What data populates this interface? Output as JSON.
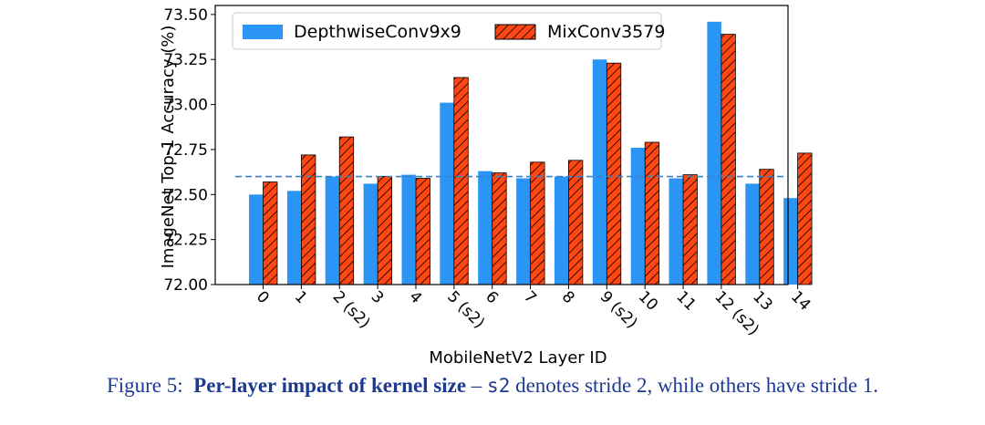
{
  "chart_data": {
    "type": "bar",
    "title": "",
    "xlabel": "MobileNetV2 Layer ID",
    "ylabel": "ImageNet Top-1 Accuracy (%)",
    "ylim": [
      72.0,
      73.55
    ],
    "yticks": [
      "72.00",
      "72.25",
      "72.50",
      "72.75",
      "73.00",
      "73.25",
      "73.50"
    ],
    "categories": [
      "0",
      "1",
      "2 (s2)",
      "3",
      "4",
      "5 (s2)",
      "6",
      "7",
      "8",
      "9 (s2)",
      "10",
      "11",
      "12 (s2)",
      "13",
      "14"
    ],
    "series": [
      {
        "name": "DepthwiseConv9x9",
        "color": "#2b95f5",
        "pattern": "solid",
        "values": [
          72.5,
          72.52,
          72.6,
          72.56,
          72.61,
          73.01,
          72.63,
          72.59,
          72.6,
          73.25,
          72.76,
          72.59,
          73.46,
          72.56,
          72.48
        ]
      },
      {
        "name": "MixConv3579",
        "color": "#ff4713",
        "pattern": "hatched",
        "values": [
          72.57,
          72.72,
          72.82,
          72.6,
          72.59,
          73.15,
          72.62,
          72.68,
          72.69,
          73.23,
          72.79,
          72.61,
          73.39,
          72.64,
          72.73
        ]
      }
    ],
    "reference_line": {
      "y": 72.6,
      "style": "dashed",
      "color": "#3b82c4"
    },
    "legend": "top",
    "grid": false
  },
  "caption": {
    "prefix": "Figure 5:",
    "bold": "Per-layer impact of kernel size",
    "dash": " – ",
    "code": "s2",
    "rest": " denotes stride 2, while others have stride 1."
  }
}
